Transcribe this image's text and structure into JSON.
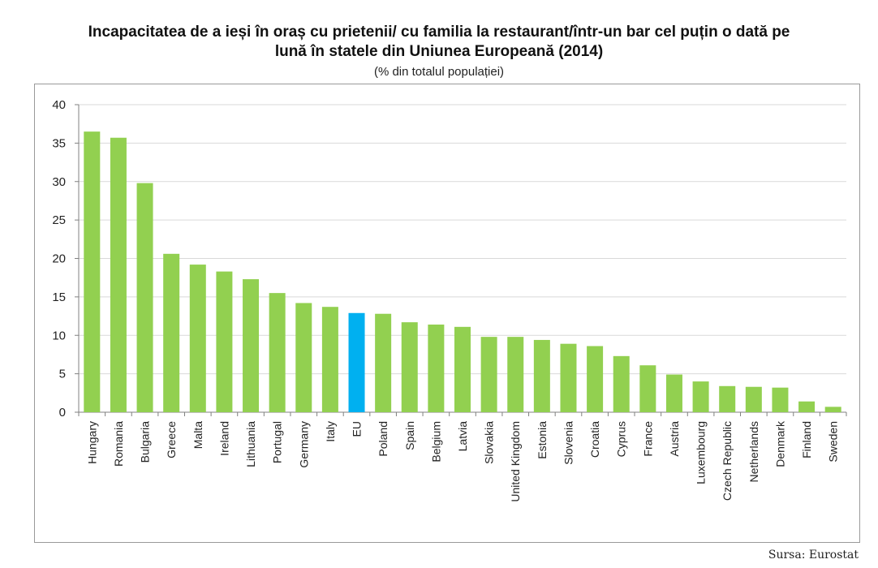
{
  "chart_data": {
    "type": "bar",
    "title_line1": "Incapacitatea de a ieși în oraș cu prietenii/ cu familia la restaurant/într-un bar cel puțin o dată pe",
    "title_line2": "lună  în statele din Uniunea Europeană (2014)",
    "subtitle": "(% din totalul populației)",
    "categories": [
      "Hungary",
      "Romania",
      "Bulgaria",
      "Greece",
      "Malta",
      "Ireland",
      "Lithuania",
      "Portugal",
      "Germany",
      "Italy",
      "EU",
      "Poland",
      "Spain",
      "Belgium",
      "Latvia",
      "Slovakia",
      "United Kingdom",
      "Estonia",
      "Slovenia",
      "Croatia",
      "Cyprus",
      "France",
      "Austria",
      "Luxembourg",
      "Czech Republic",
      "Netherlands",
      "Denmark",
      "Finland",
      "Sweden"
    ],
    "values": [
      36.5,
      35.7,
      29.8,
      20.6,
      19.2,
      18.3,
      17.3,
      15.5,
      14.2,
      13.7,
      12.9,
      12.8,
      11.7,
      11.4,
      11.1,
      9.8,
      9.8,
      9.4,
      8.9,
      8.6,
      7.3,
      6.1,
      4.9,
      4.0,
      3.4,
      3.3,
      3.2,
      1.4,
      0.7
    ],
    "highlight": "EU",
    "colors": {
      "bar": "#92d050",
      "highlight": "#00b0f0",
      "grid": "#d9d9d9",
      "axis": "#808080"
    },
    "yticks": [
      0,
      5,
      10,
      15,
      20,
      25,
      30,
      35,
      40
    ],
    "ylim": [
      0,
      40
    ],
    "xlabel": "",
    "ylabel": "",
    "grid": true
  },
  "source": "Sursa: Eurostat"
}
